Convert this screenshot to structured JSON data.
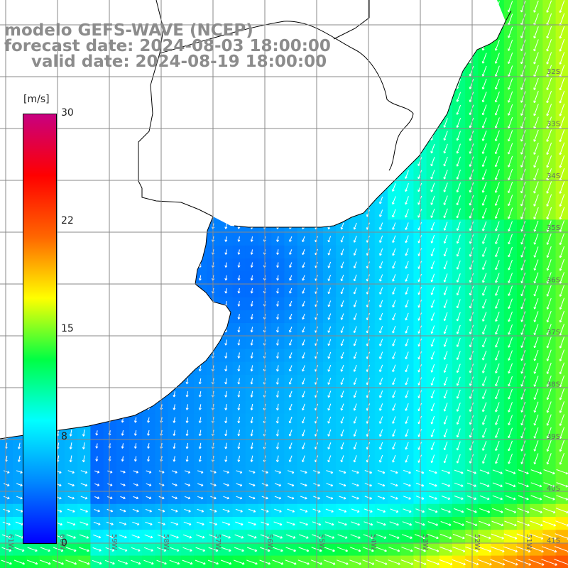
{
  "title": {
    "line1": "modelo GEFS-WAVE (NCEP)",
    "line2": "forecast date: 2024-08-03 18:00:00",
    "line3": "valid date: 2024-08-19 18:00:00"
  },
  "colorbar": {
    "unit": "[m/s]",
    "ticks": [
      "30",
      "22",
      "15",
      "8",
      "0"
    ],
    "tick_values": [
      30,
      22,
      15,
      8,
      0
    ],
    "range": [
      0,
      30
    ],
    "colors": [
      "#0000ff",
      "#0088ff",
      "#00ffff",
      "#00ff44",
      "#ffff00",
      "#ff6600",
      "#ff0000",
      "#c80080"
    ]
  },
  "map": {
    "lat_labels": [
      "32S",
      "33S",
      "34S",
      "35S",
      "36S",
      "37S",
      "38S",
      "39S",
      "40S",
      "41S"
    ],
    "lon_labels": [
      "61W",
      "60W",
      "59W",
      "58W",
      "57W",
      "56W",
      "55W",
      "54W",
      "53W",
      "52W",
      "51W"
    ],
    "land_color": "#ffffff",
    "coast_color": "#000000",
    "grid_color": "#888888",
    "arrow_color": "#ffffff"
  }
}
